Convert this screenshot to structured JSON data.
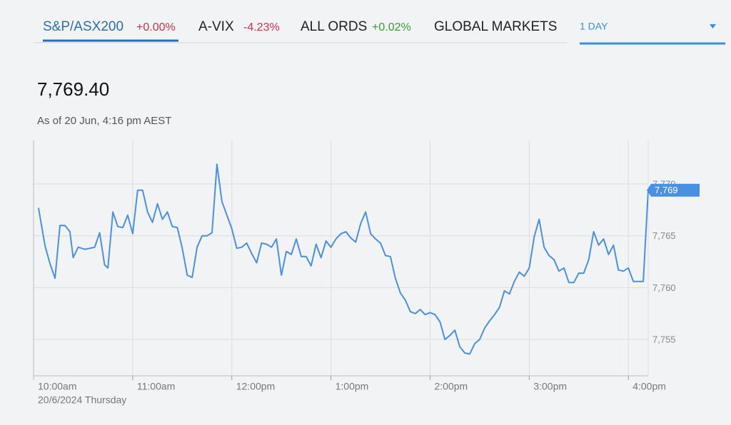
{
  "tabs": [
    {
      "name": "S&P/ASX200",
      "change": "+0.00%",
      "color": "#c8344a",
      "selected": true
    },
    {
      "name": "A-VIX",
      "change": "-4.23%",
      "color": "#c8344a",
      "selected": false
    },
    {
      "name": "ALL ORDS",
      "change": "+0.02%",
      "color": "#3a9a3a",
      "selected": false
    },
    {
      "name": "GLOBAL MARKETS",
      "selected": false
    }
  ],
  "period": "1 DAY",
  "price": "7,769.40",
  "as_of": "As of 20 Jun, 4:16 pm AEST",
  "chart_data": {
    "type": "line",
    "date_label": "20/6/2024 Thursday",
    "x": [
      3,
      7,
      10,
      13,
      16,
      19,
      22,
      24,
      27,
      31,
      34,
      37,
      40,
      43,
      45,
      48,
      51,
      54,
      57,
      60,
      63,
      66,
      69,
      72,
      75,
      78,
      81,
      84,
      87,
      90,
      93,
      96,
      99,
      102,
      105,
      108,
      111,
      114,
      120,
      123,
      126,
      129,
      132,
      135,
      138,
      141,
      144,
      147,
      150,
      153,
      156,
      159,
      162,
      165,
      168,
      171,
      174,
      177,
      180,
      183,
      186,
      189,
      192,
      195,
      198,
      201,
      204,
      207,
      210,
      213,
      216,
      219,
      222,
      225,
      228,
      231,
      234,
      237,
      240,
      243,
      246,
      249,
      252,
      255,
      258,
      261,
      264,
      267,
      270,
      273,
      276,
      279,
      282,
      285,
      288,
      291,
      294,
      297,
      300,
      303,
      306,
      309,
      312,
      315,
      318,
      321,
      324,
      327,
      330,
      333,
      336,
      339,
      342,
      345,
      348,
      351,
      354,
      357,
      360,
      363,
      366,
      369,
      372
    ],
    "series": [
      {
        "name": "S&P/ASX200",
        "color": "#4a90e2",
        "values": [
          7767.7,
          7764.0,
          7762.3,
          7760.9,
          7766.0,
          7766.0,
          7765.4,
          7762.9,
          7763.9,
          7763.7,
          7763.8,
          7763.9,
          7765.3,
          7762.2,
          7761.9,
          7767.3,
          7765.9,
          7765.8,
          7767.0,
          7765.2,
          7769.4,
          7769.4,
          7767.3,
          7766.3,
          7768.1,
          7766.6,
          7767.3,
          7765.9,
          7765.8,
          7763.8,
          7761.2,
          7761.0,
          7763.9,
          7765.0,
          7765.0,
          7765.3,
          7771.9,
          7768.3,
          7765.7,
          7763.8,
          7763.9,
          7764.3,
          7763.3,
          7762.4,
          7764.3,
          7764.2,
          7763.9,
          7764.7,
          7761.2,
          7763.5,
          7763.2,
          7764.7,
          7763.0,
          7763.0,
          7762.1,
          7764.2,
          7762.9,
          7764.5,
          7763.9,
          7764.7,
          7765.2,
          7765.4,
          7764.8,
          7764.4,
          7766.2,
          7767.3,
          7765.2,
          7764.7,
          7764.3,
          7763.1,
          7763.0,
          7760.9,
          7759.5,
          7758.8,
          7757.7,
          7757.5,
          7757.9,
          7757.4,
          7757.6,
          7757.4,
          7756.7,
          7755.0,
          7755.4,
          7755.9,
          7754.3,
          7753.7,
          7753.6,
          7754.6,
          7755.0,
          7756.1,
          7756.8,
          7757.4,
          7758.1,
          7759.7,
          7759.4,
          7760.6,
          7761.5,
          7761.1,
          7761.9,
          7764.9,
          7766.6,
          7763.9,
          7763.1,
          7762.7,
          7761.6,
          7761.9,
          7760.5,
          7760.5,
          7761.4,
          7761.4,
          7762.7,
          7765.4,
          7764.1,
          7764.7,
          7763.2,
          7764.1,
          7761.7,
          7761.6,
          7761.9,
          7760.6,
          7760.6,
          7760.6,
          7769.4
        ]
      }
    ],
    "current": {
      "value": 7769.4,
      "label": "7,769"
    },
    "xlim": [
      0,
      372
    ],
    "xticks": [
      {
        "value": 0,
        "label": "10:00am"
      },
      {
        "value": 60,
        "label": "11:00am"
      },
      {
        "value": 120,
        "label": "12:00pm"
      },
      {
        "value": 180,
        "label": "1:00pm"
      },
      {
        "value": 240,
        "label": "2:00pm"
      },
      {
        "value": 300,
        "label": "3:00pm"
      },
      {
        "value": 360,
        "label": "4:00pm"
      }
    ],
    "ylim": [
      7751.5,
      7774.2
    ],
    "yticks": [
      {
        "value": 7755,
        "label": "7,755"
      },
      {
        "value": 7760,
        "label": "7,760"
      },
      {
        "value": 7765,
        "label": "7,765"
      },
      {
        "value": 7770,
        "label": "7,770"
      }
    ],
    "grid": true
  }
}
